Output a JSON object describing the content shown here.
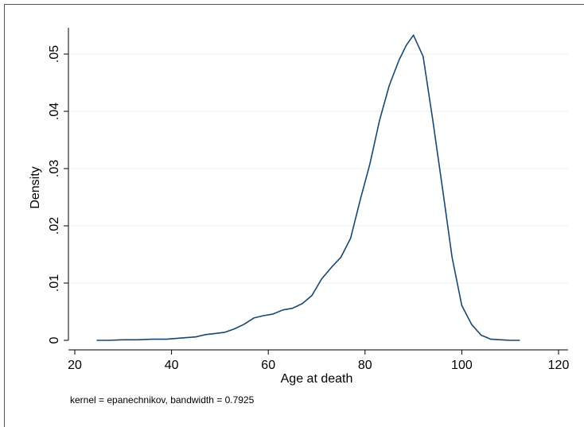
{
  "chart_data": {
    "type": "line",
    "title": "",
    "xlabel": "Age at death",
    "ylabel": "Density",
    "note": "kernel = epanechnikov, bandwidth = 0.7925",
    "xlim": [
      20,
      120
    ],
    "ylim": [
      0,
      0.055
    ],
    "xticks": [
      20,
      40,
      60,
      80,
      100,
      120
    ],
    "xtick_labels": [
      "20",
      "40",
      "60",
      "80",
      "100",
      "120"
    ],
    "yticks": [
      0,
      0.01,
      0.02,
      0.03,
      0.04,
      0.05
    ],
    "ytick_labels": [
      "0",
      ".01",
      ".02",
      ".03",
      ".04",
      ".05"
    ],
    "grid": true,
    "legend": "none",
    "line_color": "#1a476f",
    "series": [
      {
        "x": [
          24.5,
          27,
          30,
          33,
          36,
          39,
          42,
          45,
          47,
          49,
          51,
          53,
          55,
          57,
          59,
          61,
          63,
          65,
          67,
          69,
          71,
          73,
          75,
          77,
          79,
          81,
          83,
          85,
          87,
          88.5,
          90,
          92,
          94,
          96,
          98,
          100,
          102,
          104,
          106,
          108,
          110,
          112
        ],
        "y": [
          0.0,
          0.0,
          0.0001,
          0.0001,
          0.0002,
          0.0002,
          0.0004,
          0.0006,
          0.001,
          0.0012,
          0.0014,
          0.002,
          0.0028,
          0.0039,
          0.0043,
          0.0046,
          0.0053,
          0.0056,
          0.0064,
          0.0078,
          0.0107,
          0.0127,
          0.0145,
          0.0178,
          0.0245,
          0.0308,
          0.0384,
          0.0445,
          0.0489,
          0.0515,
          0.0533,
          0.0496,
          0.0385,
          0.0266,
          0.0145,
          0.0061,
          0.0028,
          0.0009,
          0.0002,
          0.0001,
          0.0,
          0.0
        ]
      }
    ]
  }
}
